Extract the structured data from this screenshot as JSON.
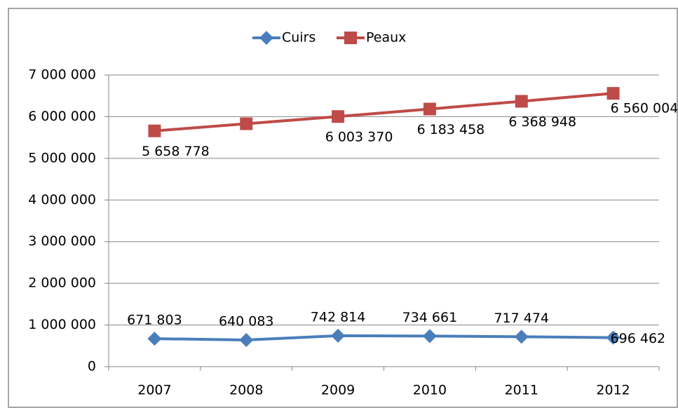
{
  "chart_data": {
    "type": "line",
    "categories": [
      "2007",
      "2008",
      "2009",
      "2010",
      "2011",
      "2012"
    ],
    "series": [
      {
        "name": "Cuirs",
        "color": "#4a7ebb",
        "values": [
          671803,
          640083,
          742814,
          734661,
          717474,
          696462
        ],
        "value_labels": [
          "671 803",
          "640 083",
          "742 814",
          "734 661",
          "717 474",
          "696 462"
        ]
      },
      {
        "name": "Peaux",
        "color": "#be4b48",
        "values": [
          5658778,
          5830000,
          6003370,
          6183458,
          6368948,
          6560004
        ],
        "value_labels": [
          "5 658 778",
          null,
          "6 003 370",
          "6 183 458",
          "6 368 948",
          "6 560 004"
        ]
      }
    ],
    "ylim": [
      0,
      7000000
    ],
    "yticks": [
      {
        "value": 0,
        "label": "0"
      },
      {
        "value": 1000000,
        "label": "1 000 000"
      },
      {
        "value": 2000000,
        "label": "2 000 000"
      },
      {
        "value": 3000000,
        "label": "3 000 000"
      },
      {
        "value": 4000000,
        "label": "4 000 000"
      },
      {
        "value": 5000000,
        "label": "5 000 000"
      },
      {
        "value": 6000000,
        "label": "6 000 000"
      },
      {
        "value": 7000000,
        "label": "7 000 000"
      }
    ],
    "grid": true,
    "legend": "top"
  }
}
